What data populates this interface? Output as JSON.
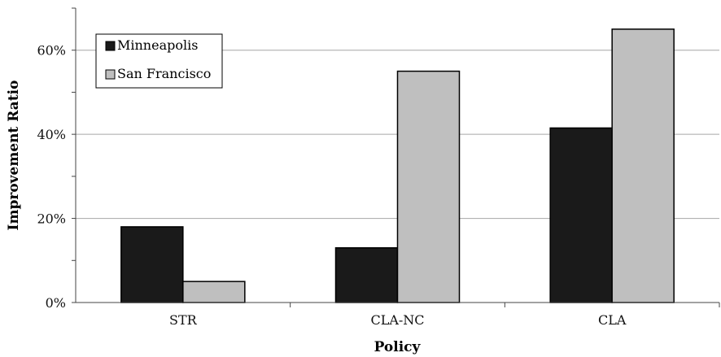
{
  "chart_data": {
    "type": "bar",
    "categories": [
      "STR",
      "CLA-NC",
      "CLA"
    ],
    "series": [
      {
        "name": "Minneapolis",
        "values": [
          18,
          13,
          41.5
        ],
        "color": "#1a1a1a"
      },
      {
        "name": "San Francisco",
        "values": [
          5,
          55,
          65
        ],
        "color": "#bfbfbf"
      }
    ],
    "xlabel": "Policy",
    "ylabel": "Improvement Ratio",
    "ylim": [
      0,
      70
    ],
    "yticks": [
      0,
      20,
      40,
      60
    ],
    "ytick_labels": [
      "0%",
      "20%",
      "40%",
      "60%"
    ],
    "grid": true,
    "legend_position": "top-left"
  }
}
